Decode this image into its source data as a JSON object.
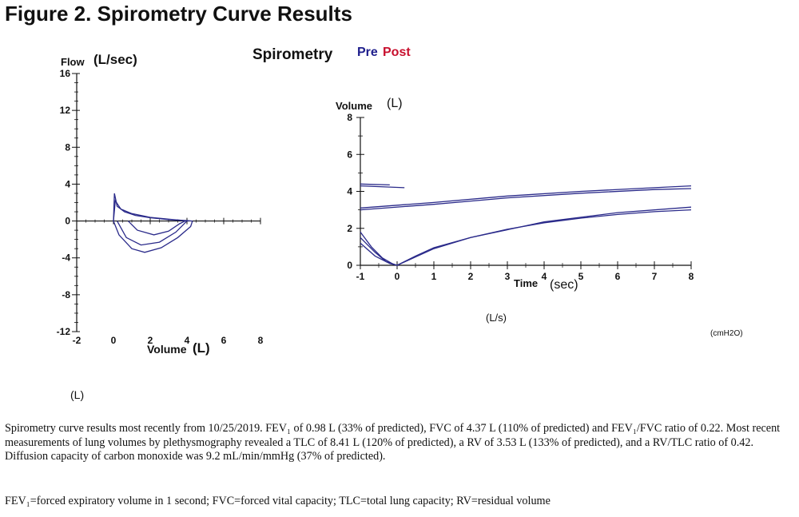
{
  "figure_title": "Figure 2. Spirometry Curve Results",
  "legend": {
    "title": "Spirometry",
    "pre": "Pre",
    "post": "Post",
    "pre_color": "#1e1e8c",
    "post_color": "#c8102e"
  },
  "colors": {
    "curve": "#2a2a8a",
    "axis": "#111111"
  },
  "extra_labels": {
    "l_per_s": "(L/s)",
    "cmh2o": "(cmH2O)",
    "l_unit": "(L)"
  },
  "caption": "Spirometry curve results most recently from 10/25/2019. FEV₁ of 0.98 L (33% of predicted), FVC of 4.37 L (110% of predicted) and FEV₁/FVC ratio of 0.22. Most recent measurements of lung volumes by plethysmography revealed a TLC of 8.41 L (120% of predicted), a RV of 3.53 L (133% of predicted), and a RV/TLC ratio of 0.42. Diffusion capacity of carbon monoxide was 9.2 mL/min/mmHg (37% of predicted).",
  "abbreviations": "FEV₁=forced expiratory volume in 1 second; FVC=forced vital capacity; TLC=total lung capacity; RV=residual volume",
  "chart_data": [
    {
      "type": "line",
      "chart": "flow-volume",
      "ylabel": "Flow",
      "ylabel_unit": "(L/sec)",
      "xlabel": "Volume",
      "xlabel_unit": "(L)",
      "xlim": [
        -2,
        8
      ],
      "ylim": [
        -12,
        16
      ],
      "xticks": [
        -2,
        0,
        2,
        4,
        6,
        8
      ],
      "yticks": [
        -12,
        -8,
        -4,
        0,
        4,
        8,
        12,
        16
      ],
      "series": [
        {
          "values": [
            [
              0,
              0
            ],
            [
              0.05,
              3.0
            ],
            [
              0.2,
              1.6
            ],
            [
              0.6,
              1.0
            ],
            [
              1.2,
              0.6
            ],
            [
              2,
              0.35
            ],
            [
              3,
              0.15
            ],
            [
              4,
              0.05
            ],
            [
              4.3,
              0
            ]
          ]
        },
        {
          "values": [
            [
              0,
              0
            ],
            [
              0.1,
              2.2
            ],
            [
              0.4,
              1.3
            ],
            [
              1,
              0.8
            ],
            [
              2,
              0.4
            ],
            [
              3,
              0.2
            ],
            [
              4.1,
              0
            ]
          ]
        },
        {
          "values": [
            [
              0,
              0
            ],
            [
              0.3,
              -1.5
            ],
            [
              1,
              -3.0
            ],
            [
              1.7,
              -3.4
            ],
            [
              2.6,
              -2.9
            ],
            [
              3.5,
              -1.8
            ],
            [
              4.2,
              -0.6
            ],
            [
              4.3,
              0
            ]
          ]
        },
        {
          "values": [
            [
              0.2,
              0
            ],
            [
              0.7,
              -1.8
            ],
            [
              1.5,
              -2.6
            ],
            [
              2.5,
              -2.3
            ],
            [
              3.4,
              -1.2
            ],
            [
              4.0,
              0
            ]
          ]
        },
        {
          "values": [
            [
              0.8,
              0
            ],
            [
              1.3,
              -1.0
            ],
            [
              2.2,
              -1.5
            ],
            [
              3.0,
              -1.1
            ],
            [
              3.6,
              -0.3
            ],
            [
              3.9,
              0
            ]
          ]
        }
      ]
    },
    {
      "type": "line",
      "chart": "volume-time",
      "ylabel": "Volume",
      "ylabel_unit": "(L)",
      "xlabel": "Time",
      "xlabel_unit": "(sec)",
      "xlim": [
        -1,
        8
      ],
      "ylim": [
        0,
        8
      ],
      "xticks": [
        -1,
        0,
        1,
        2,
        3,
        4,
        5,
        6,
        7,
        8
      ],
      "yticks": [
        0,
        2,
        4,
        6,
        8
      ],
      "series": [
        {
          "values": [
            [
              -1,
              1.8
            ],
            [
              -0.7,
              1.0
            ],
            [
              -0.4,
              0.4
            ],
            [
              -0.1,
              0.05
            ],
            [
              0,
              0
            ],
            [
              0.5,
              0.5
            ],
            [
              1,
              0.95
            ],
            [
              2,
              1.5
            ],
            [
              3,
              1.95
            ],
            [
              4,
              2.3
            ],
            [
              5,
              2.55
            ],
            [
              6,
              2.75
            ],
            [
              7,
              2.9
            ],
            [
              8,
              3.0
            ]
          ]
        },
        {
          "values": [
            [
              -1,
              1.5
            ],
            [
              -0.6,
              0.7
            ],
            [
              -0.3,
              0.2
            ],
            [
              0,
              0
            ],
            [
              1,
              0.9
            ],
            [
              2,
              1.5
            ],
            [
              4,
              2.35
            ],
            [
              6,
              2.85
            ],
            [
              8,
              3.15
            ]
          ]
        },
        {
          "values": [
            [
              -1,
              1.2
            ],
            [
              -0.6,
              0.5
            ],
            [
              -0.2,
              0.1
            ],
            [
              0,
              0
            ]
          ]
        },
        {
          "values": [
            [
              -1,
              3.0
            ],
            [
              1,
              3.3
            ],
            [
              3,
              3.65
            ],
            [
              5,
              3.9
            ],
            [
              7,
              4.1
            ],
            [
              8,
              4.15
            ]
          ]
        },
        {
          "values": [
            [
              -1,
              3.1
            ],
            [
              1,
              3.4
            ],
            [
              3,
              3.75
            ],
            [
              5,
              4.0
            ],
            [
              7,
              4.2
            ],
            [
              8,
              4.3
            ]
          ]
        },
        {
          "values": [
            [
              -1,
              4.3
            ],
            [
              0.2,
              4.2
            ]
          ]
        },
        {
          "values": [
            [
              -1,
              4.4
            ],
            [
              -0.2,
              4.35
            ]
          ]
        }
      ]
    }
  ]
}
